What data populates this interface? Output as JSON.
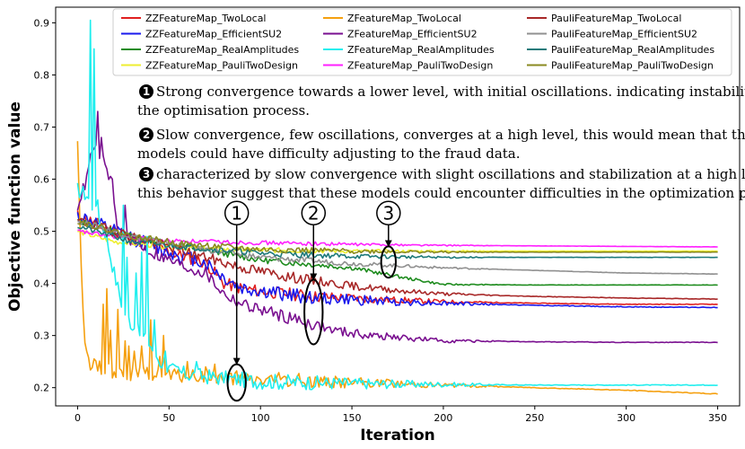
{
  "chart_data": {
    "type": "line",
    "xlabel": "Iteration",
    "ylabel": "Objective function value",
    "xlim": [
      -12,
      362
    ],
    "ylim": [
      0.165,
      0.93
    ],
    "xticks": [
      0,
      50,
      100,
      150,
      200,
      250,
      300,
      350
    ],
    "yticks": [
      0.2,
      0.3,
      0.4,
      0.5,
      0.6,
      0.7,
      0.8,
      0.9
    ],
    "legend_position": "top",
    "series": [
      {
        "name": "ZZFeatureMap_TwoLocal",
        "color": "#e02020",
        "seed": 11,
        "noise_amp": 0.012,
        "points": [
          [
            0,
            0.53
          ],
          [
            20,
            0.5
          ],
          [
            50,
            0.46
          ],
          [
            70,
            0.44
          ],
          [
            80,
            0.4
          ],
          [
            90,
            0.39
          ],
          [
            100,
            0.385
          ],
          [
            130,
            0.375
          ],
          [
            160,
            0.37
          ],
          [
            200,
            0.365
          ],
          [
            250,
            0.362
          ],
          [
            300,
            0.36
          ],
          [
            350,
            0.36
          ]
        ]
      },
      {
        "name": "ZZFeatureMap_EfficientSU2",
        "color": "#1a1aee",
        "seed": 12,
        "noise_amp": 0.014,
        "points": [
          [
            0,
            0.53
          ],
          [
            20,
            0.5
          ],
          [
            50,
            0.46
          ],
          [
            70,
            0.44
          ],
          [
            80,
            0.41
          ],
          [
            90,
            0.39
          ],
          [
            100,
            0.385
          ],
          [
            130,
            0.372
          ],
          [
            160,
            0.367
          ],
          [
            200,
            0.362
          ],
          [
            250,
            0.358
          ],
          [
            300,
            0.355
          ],
          [
            350,
            0.354
          ]
        ]
      },
      {
        "name": "ZZFeatureMap_RealAmplitudes",
        "color": "#1f8c1f",
        "seed": 13,
        "noise_amp": 0.006,
        "points": [
          [
            0,
            0.52
          ],
          [
            30,
            0.49
          ],
          [
            60,
            0.47
          ],
          [
            100,
            0.445
          ],
          [
            150,
            0.43
          ],
          [
            180,
            0.41
          ],
          [
            200,
            0.398
          ],
          [
            250,
            0.397
          ],
          [
            300,
            0.397
          ],
          [
            350,
            0.397
          ]
        ]
      },
      {
        "name": "ZZFeatureMap_PauliTwoDesign",
        "color": "#eeee30",
        "seed": 14,
        "noise_amp": 0.005,
        "points": [
          [
            0,
            0.5
          ],
          [
            20,
            0.48
          ],
          [
            50,
            0.47
          ],
          [
            80,
            0.465
          ],
          [
            150,
            0.462
          ],
          [
            200,
            0.462
          ],
          [
            350,
            0.462
          ]
        ]
      },
      {
        "name": "ZFeatureMap_TwoLocal",
        "color": "#f5a010",
        "seed": 15,
        "noise_amp": 0.014,
        "points": [
          [
            0,
            0.68
          ],
          [
            2,
            0.42
          ],
          [
            4,
            0.3
          ],
          [
            6,
            0.25
          ],
          [
            10,
            0.24
          ],
          [
            20,
            0.23
          ],
          [
            40,
            0.225
          ],
          [
            60,
            0.22
          ],
          [
            80,
            0.22
          ],
          [
            100,
            0.215
          ],
          [
            110,
            0.215
          ],
          [
            150,
            0.21
          ],
          [
            200,
            0.205
          ],
          [
            250,
            0.2
          ],
          [
            300,
            0.195
          ],
          [
            350,
            0.188
          ]
        ],
        "spikes": [
          [
            14,
            0.36
          ],
          [
            16,
            0.39
          ],
          [
            18,
            0.31
          ],
          [
            22,
            0.35
          ],
          [
            26,
            0.29
          ],
          [
            28,
            0.28
          ],
          [
            31,
            0.27
          ],
          [
            35,
            0.28
          ],
          [
            40,
            0.33
          ],
          [
            45,
            0.26
          ],
          [
            47,
            0.3
          ],
          [
            60,
            0.25
          ],
          [
            70,
            0.24
          ],
          [
            75,
            0.245
          ]
        ]
      },
      {
        "name": "ZFeatureMap_EfficientSU2",
        "color": "#7a1090",
        "seed": 16,
        "noise_amp": 0.012,
        "points": [
          [
            0,
            0.55
          ],
          [
            5,
            0.6
          ],
          [
            8,
            0.66
          ],
          [
            12,
            0.65
          ],
          [
            18,
            0.6
          ],
          [
            22,
            0.5
          ],
          [
            40,
            0.46
          ],
          [
            60,
            0.43
          ],
          [
            70,
            0.42
          ],
          [
            75,
            0.4
          ],
          [
            80,
            0.38
          ],
          [
            90,
            0.36
          ],
          [
            100,
            0.35
          ],
          [
            120,
            0.33
          ],
          [
            140,
            0.31
          ],
          [
            160,
            0.3
          ],
          [
            180,
            0.295
          ],
          [
            200,
            0.29
          ],
          [
            250,
            0.288
          ],
          [
            300,
            0.287
          ],
          [
            350,
            0.287
          ]
        ],
        "spikes": [
          [
            11,
            0.73
          ],
          [
            13,
            0.68
          ],
          [
            16,
            0.62
          ],
          [
            19,
            0.6
          ],
          [
            26,
            0.55
          ]
        ]
      },
      {
        "name": "ZFeatureMap_RealAmplitudes",
        "color": "#20eeee",
        "seed": 17,
        "noise_amp": 0.015,
        "points": [
          [
            0,
            0.58
          ],
          [
            5,
            0.57
          ],
          [
            15,
            0.5
          ],
          [
            20,
            0.42
          ],
          [
            25,
            0.35
          ],
          [
            30,
            0.32
          ],
          [
            35,
            0.3
          ],
          [
            40,
            0.28
          ],
          [
            45,
            0.25
          ],
          [
            50,
            0.235
          ],
          [
            60,
            0.225
          ],
          [
            80,
            0.218
          ],
          [
            100,
            0.212
          ],
          [
            150,
            0.208
          ],
          [
            200,
            0.206
          ],
          [
            250,
            0.205
          ],
          [
            300,
            0.205
          ],
          [
            350,
            0.205
          ]
        ],
        "spikes": [
          [
            7,
            0.905
          ],
          [
            9,
            0.85
          ],
          [
            11,
            0.56
          ],
          [
            25,
            0.55
          ],
          [
            27,
            0.45
          ],
          [
            32,
            0.42
          ],
          [
            35,
            0.46
          ],
          [
            38,
            0.49
          ],
          [
            42,
            0.33
          ],
          [
            48,
            0.27
          ],
          [
            55,
            0.24
          ],
          [
            65,
            0.25
          ]
        ]
      },
      {
        "name": "ZFeatureMap_PauliTwoDesign",
        "color": "#ff20ff",
        "seed": 18,
        "noise_amp": 0.004,
        "points": [
          [
            0,
            0.5
          ],
          [
            20,
            0.49
          ],
          [
            50,
            0.482
          ],
          [
            100,
            0.478
          ],
          [
            150,
            0.475
          ],
          [
            200,
            0.473
          ],
          [
            250,
            0.472
          ],
          [
            300,
            0.471
          ],
          [
            350,
            0.47
          ]
        ]
      },
      {
        "name": "PauliFeatureMap_TwoLocal",
        "color": "#a82828",
        "seed": 19,
        "noise_amp": 0.01,
        "points": [
          [
            0,
            0.52
          ],
          [
            30,
            0.49
          ],
          [
            60,
            0.46
          ],
          [
            90,
            0.43
          ],
          [
            120,
            0.41
          ],
          [
            150,
            0.395
          ],
          [
            180,
            0.385
          ],
          [
            200,
            0.38
          ],
          [
            250,
            0.375
          ],
          [
            300,
            0.372
          ],
          [
            350,
            0.37
          ]
        ]
      },
      {
        "name": "PauliFeatureMap_EfficientSU2",
        "color": "#909090",
        "seed": 20,
        "noise_amp": 0.006,
        "points": [
          [
            0,
            0.52
          ],
          [
            30,
            0.49
          ],
          [
            60,
            0.47
          ],
          [
            100,
            0.45
          ],
          [
            150,
            0.438
          ],
          [
            200,
            0.43
          ],
          [
            250,
            0.425
          ],
          [
            300,
            0.42
          ],
          [
            350,
            0.418
          ]
        ]
      },
      {
        "name": "PauliFeatureMap_RealAmplitudes",
        "color": "#1e7a7a",
        "seed": 21,
        "noise_amp": 0.006,
        "points": [
          [
            0,
            0.51
          ],
          [
            30,
            0.48
          ],
          [
            60,
            0.47
          ],
          [
            100,
            0.458
          ],
          [
            150,
            0.452
          ],
          [
            200,
            0.45
          ],
          [
            250,
            0.45
          ],
          [
            300,
            0.45
          ],
          [
            350,
            0.45
          ]
        ]
      },
      {
        "name": "PauliFeatureMap_PauliTwoDesign",
        "color": "#8a8a20",
        "seed": 22,
        "noise_amp": 0.006,
        "points": [
          [
            0,
            0.52
          ],
          [
            30,
            0.49
          ],
          [
            60,
            0.475
          ],
          [
            100,
            0.465
          ],
          [
            150,
            0.462
          ],
          [
            200,
            0.46
          ],
          [
            350,
            0.46
          ]
        ]
      }
    ],
    "annotations": [
      {
        "label": "1",
        "text_lines": [
          "Strong convergence towards a lower level, with initial oscillations. indicating instability in",
          "the optimisation process."
        ]
      },
      {
        "label": "2",
        "text_lines": [
          "Slow convergence, few oscillations, converges at a high level, this would mean that these",
          "models could have difficulty adjusting to the fraud data."
        ]
      },
      {
        "label": "3",
        "text_lines": [
          "characterized by slow convergence with slight oscillations and stabilization at a high level,",
          "this behavior suggest that these models could encounter difficulties in the optimization process."
        ]
      }
    ],
    "markers": [
      {
        "label": "1",
        "x": 87,
        "y_top": 0.535,
        "ellipse_y": 0.21,
        "ellipse_rx": 5,
        "ellipse_ry": 0.035
      },
      {
        "label": "2",
        "x": 129,
        "y_top": 0.535,
        "ellipse_y": 0.345,
        "ellipse_rx": 5,
        "ellipse_ry": 0.062
      },
      {
        "label": "3",
        "x": 170,
        "y_top": 0.535,
        "ellipse_y": 0.441,
        "ellipse_rx": 4,
        "ellipse_ry": 0.03
      }
    ]
  }
}
